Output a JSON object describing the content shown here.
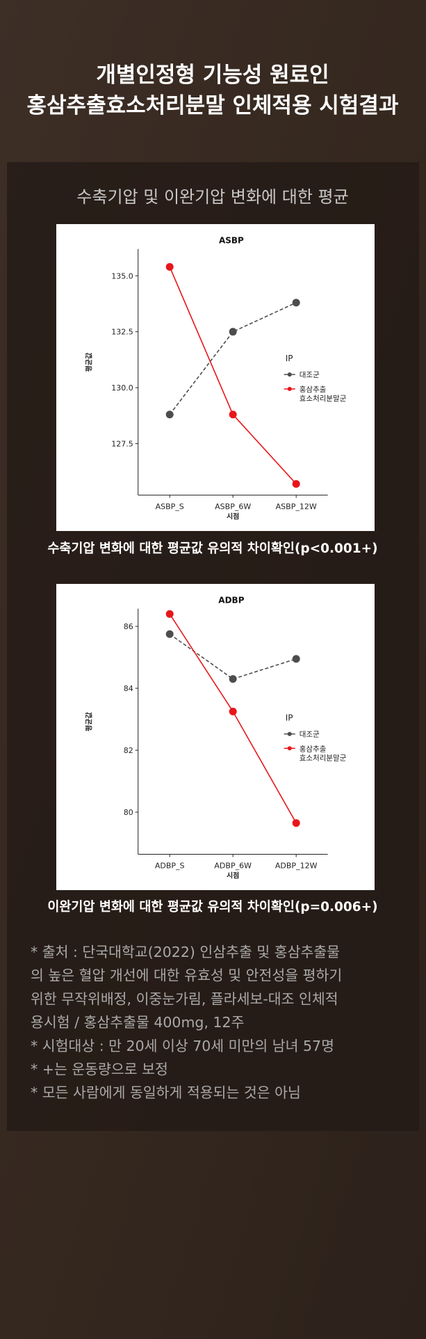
{
  "header": {
    "title": [
      "개별인정형 기능성 원료인",
      "홍삼추출효소처리분말 인체적용 시험결과"
    ],
    "subtitle": "수축기압 및 이완기압 변화에 대한 평균"
  },
  "chart_data": [
    {
      "type": "line",
      "title": "ASBP",
      "categories": [
        "ASBP_S",
        "ASBP_6W",
        "ASBP_12W"
      ],
      "xlabel": "시점",
      "ylabel": "평균값",
      "legend_title": "IP",
      "series": [
        {
          "name": "대조군",
          "color": "#4d4d4d",
          "dash": true,
          "values": [
            128.8,
            132.5,
            133.8
          ]
        },
        {
          "name": "홍삼추출\n효소처리분말군",
          "color": "#e8161b",
          "dash": false,
          "values": [
            135.4,
            128.8,
            125.7
          ]
        }
      ],
      "ylim": [
        125.2,
        136.2
      ],
      "yticks": [
        {
          "value": 127.5,
          "label": "127.5"
        },
        {
          "value": 130,
          "label": "130.0"
        },
        {
          "value": 132.5,
          "label": "132.5"
        },
        {
          "value": 135,
          "label": "135.0"
        }
      ],
      "caption": "수축기압 변화에 대한 평균값 유의적 차이확인(p<0.001+)"
    },
    {
      "type": "line",
      "title": "ADBP",
      "categories": [
        "ADBP_S",
        "ADBP_6W",
        "ADBP_12W"
      ],
      "xlabel": "시점",
      "ylabel": "평균값",
      "legend_title": "IP",
      "series": [
        {
          "name": "대조군",
          "color": "#4d4d4d",
          "dash": true,
          "values": [
            85.75,
            84.3,
            84.95
          ]
        },
        {
          "name": "홍삼추출\n효소처리분말군",
          "color": "#e8161b",
          "dash": false,
          "values": [
            86.4,
            83.25,
            79.65
          ]
        }
      ],
      "ylim": [
        78.64,
        86.57
      ],
      "yticks": [
        80,
        82,
        84,
        86
      ],
      "caption": "이완기압 변화에 대한 평균값 유의적 차이확인(p=0.006+)"
    }
  ],
  "notes": [
    "* 출처 : 단국대학교(2022) 인삼추출 및 홍삼추출물",
    "의 높은 혈압 개선에 대한 유효성 및 안전성을 평하기",
    "위한 무작위배정, 이중눈가림, 플라세보-대조 인체적",
    "용시험 / 홍삼추출물 400mg, 12주",
    "* 시험대상 : 만 20세 이상 70세 미만의 남녀 57명",
    "* +는 운동량으로 보정",
    "* 모든 사람에게 동일하게 적용되는 것은 아님"
  ]
}
